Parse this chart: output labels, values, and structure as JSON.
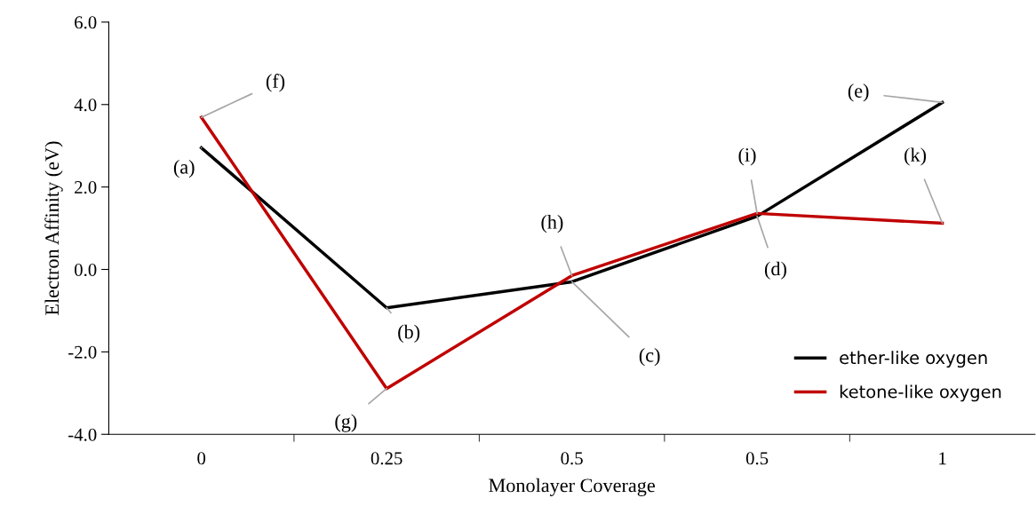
{
  "chart_data": {
    "type": "line",
    "xlabel": "Monolayer Coverage",
    "ylabel": "Electron Affinity (eV)",
    "categories": [
      "0",
      "0.25",
      "0.5",
      "0.5",
      "1"
    ],
    "series": [
      {
        "name": "ether-like oxygen",
        "color": "#000000",
        "values": [
          2.95,
          -0.93,
          -0.3,
          1.29,
          4.05
        ]
      },
      {
        "name": "ketone-like oxygen",
        "color": "#c00000",
        "values": [
          3.69,
          -2.89,
          -0.15,
          1.36,
          1.12
        ]
      }
    ],
    "ylim": [
      -4.0,
      6.0
    ],
    "yticks": [
      {
        "value": -4,
        "label": "-4.0"
      },
      {
        "value": -2,
        "label": "-2.0"
      },
      {
        "value": 0,
        "label": "0.0"
      },
      {
        "value": 2,
        "label": "2.0"
      },
      {
        "value": 4,
        "label": "4.0"
      },
      {
        "value": 6,
        "label": "6.0"
      }
    ],
    "annotations": [
      {
        "text": "(a)",
        "x": "0",
        "y": 2.95
      },
      {
        "text": "(b)",
        "x": "0.25",
        "y": -0.93
      },
      {
        "text": "(c)",
        "x": "0.5",
        "y": -0.3
      },
      {
        "text": "(d)",
        "y": 1.29
      },
      {
        "text": "(e)",
        "x": "1",
        "y": 4.05
      },
      {
        "text": "(f)",
        "x": "0",
        "y": 3.69
      },
      {
        "text": "(g)",
        "x": "0.25",
        "y": -2.89
      },
      {
        "text": "(h)",
        "x": "0.5",
        "y": -0.15
      },
      {
        "text": "(i)",
        "y": 1.36
      },
      {
        "text": "(k)",
        "x": "1",
        "y": 1.12
      }
    ],
    "grid": false,
    "legend": "bottom right",
    "marker": "none",
    "line_style": "solid"
  }
}
